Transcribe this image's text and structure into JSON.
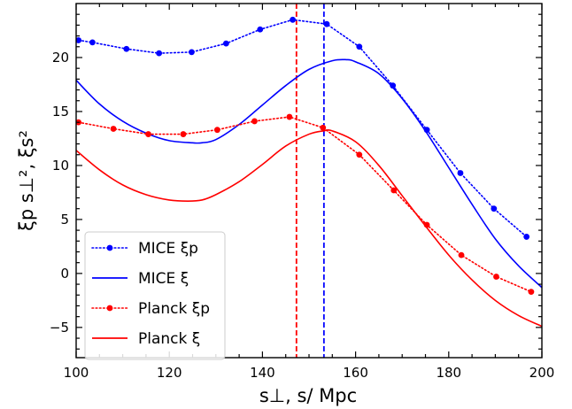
{
  "chart_data": {
    "type": "line",
    "xlabel": "s⊥, s/  Mpc",
    "ylabel": "ξp s⊥², ξs²",
    "xlim": [
      100,
      200
    ],
    "ylim": [
      -7.8,
      25
    ],
    "x_ticks": [
      100,
      120,
      140,
      160,
      180,
      200
    ],
    "y_ticks": [
      -5,
      0,
      5,
      10,
      15,
      20
    ],
    "legend_position": "lower-left",
    "grid": false,
    "series": [
      {
        "name": "MICE ξp",
        "color": "#0000ff",
        "style": "dotted-markers",
        "x": [
          100.5,
          103.5,
          110.8,
          117.8,
          124.8,
          132.2,
          139.5,
          146.5,
          153.8,
          160.8,
          168,
          175.3,
          182.5,
          189.7,
          196.7
        ],
        "y": [
          21.6,
          21.4,
          20.8,
          20.4,
          20.5,
          21.3,
          22.6,
          23.5,
          23.1,
          21.0,
          17.4,
          13.3,
          9.3,
          6.0,
          3.4
        ]
      },
      {
        "name": "MICE ξ",
        "color": "#0000ff",
        "style": "solid",
        "x": [
          100,
          105,
          110,
          115,
          120,
          125,
          127,
          130,
          135,
          140,
          145,
          150,
          155,
          158,
          160,
          165,
          170,
          175,
          180,
          185,
          190,
          195,
          200
        ],
        "y": [
          17.9,
          15.7,
          14.1,
          13.0,
          12.3,
          12.1,
          12.1,
          12.4,
          13.8,
          15.6,
          17.4,
          18.9,
          19.7,
          19.8,
          19.6,
          18.5,
          16.2,
          13.2,
          9.8,
          6.4,
          3.2,
          0.7,
          -1.3
        ]
      },
      {
        "name": "Planck ξp",
        "color": "#ff0000",
        "style": "dotted-markers",
        "x": [
          100.5,
          108,
          115.5,
          123,
          130.3,
          138.3,
          145.8,
          153,
          160.8,
          168.2,
          175.3,
          182.7,
          190.2,
          197.7
        ],
        "y": [
          14.0,
          13.4,
          12.9,
          12.9,
          13.3,
          14.1,
          14.5,
          13.5,
          11.0,
          7.7,
          4.5,
          1.7,
          -0.3,
          -1.7
        ]
      },
      {
        "name": "Planck ξ",
        "color": "#ff0000",
        "style": "solid",
        "x": [
          100,
          105,
          110,
          115,
          120,
          124,
          127,
          130,
          135,
          140,
          145,
          150,
          153,
          155,
          160,
          165,
          170,
          175,
          180,
          185,
          190,
          195,
          200
        ],
        "y": [
          11.4,
          9.6,
          8.2,
          7.3,
          6.8,
          6.7,
          6.8,
          7.3,
          8.5,
          10.1,
          11.8,
          12.9,
          13.2,
          13.2,
          12.2,
          10.0,
          7.2,
          4.4,
          1.7,
          -0.6,
          -2.5,
          -3.9,
          -4.9
        ]
      }
    ],
    "vlines": [
      {
        "x": 147.3,
        "color": "#ff0000",
        "style": "dashed"
      },
      {
        "x": 153.2,
        "color": "#0000ff",
        "style": "dashed"
      }
    ]
  }
}
